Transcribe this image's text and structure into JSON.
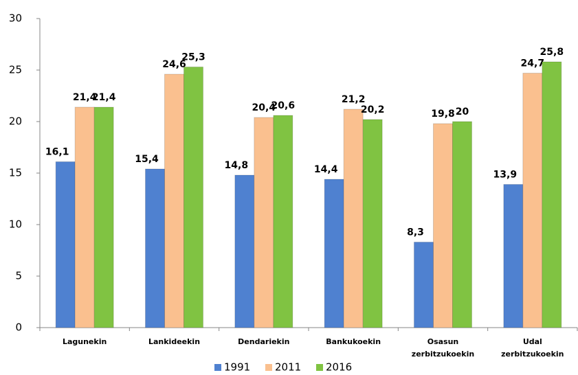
{
  "chart_data": {
    "type": "bar",
    "categories": [
      "Lagunekin",
      "Lankideekin",
      "Dendariekin",
      "Bankukoekin",
      "Osasun zerbitzukoekin",
      "Udal zerbitzukoekin"
    ],
    "series": [
      {
        "name": "1991",
        "color": "#4f81d0",
        "values": [
          16.1,
          15.4,
          14.8,
          14.4,
          8.3,
          13.9
        ],
        "value_labels": [
          "16,1",
          "15,4",
          "14,8",
          "14,4",
          "8,3",
          "13,9"
        ]
      },
      {
        "name": "2011",
        "color": "#fac08f",
        "values": [
          21.4,
          24.6,
          20.4,
          21.2,
          19.8,
          24.7
        ],
        "value_labels": [
          "21,4",
          "24,6",
          "20,4",
          "21,2",
          "19,8",
          "24,7"
        ]
      },
      {
        "name": "2016",
        "color": "#80c342",
        "values": [
          21.4,
          25.3,
          20.6,
          20.2,
          20,
          25.8
        ],
        "value_labels": [
          "21,4",
          "25,3",
          "20,6",
          "20,2",
          "20",
          "25,8"
        ]
      }
    ],
    "ylim": [
      0,
      30
    ],
    "yticks": [
      0,
      5,
      10,
      15,
      20,
      25,
      30
    ],
    "grid": false,
    "legend": "bottom"
  }
}
